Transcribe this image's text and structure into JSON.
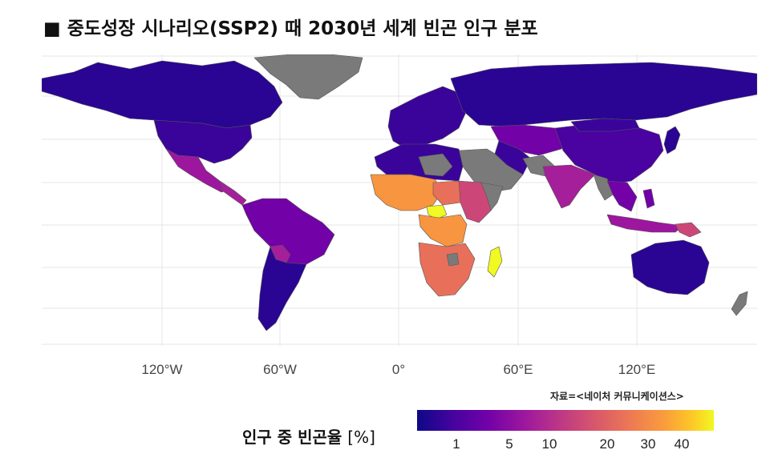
{
  "title": "■ 중도성장 시나리오(SSP2) 때 2030년 세계 빈곤 인구 분포",
  "map": {
    "x_axis_labels": [
      "120°W",
      "60°W",
      "0°",
      "60°E",
      "120°E"
    ],
    "missing_color": "#7a7a7a",
    "colors": {
      "very_low": "#2a0593",
      "low": "#4a03a0",
      "mid_low": "#7201a8",
      "mid": "#a51f9b",
      "mid_high": "#cc4778",
      "high": "#e8705a",
      "very_high": "#f89540",
      "extreme": "#f0f921"
    }
  },
  "source": "자료=<네이처 커뮤니케이션스>",
  "legend": {
    "title": "인구 중 빈곤율",
    "unit": "[%]",
    "ticks": [
      "1",
      "5",
      "10",
      "20",
      "30",
      "40"
    ]
  }
}
